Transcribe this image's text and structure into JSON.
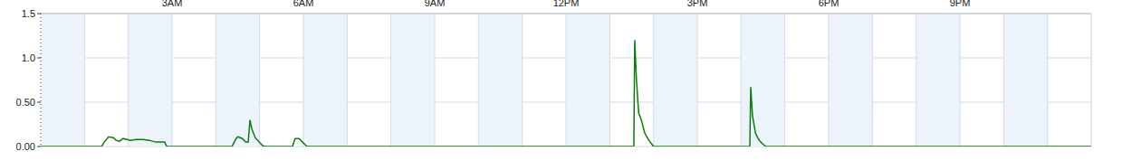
{
  "chart_data": {
    "type": "line",
    "color": "#0a7d0a",
    "grid": true,
    "x": [
      0,
      1.39,
      1.45,
      1.55,
      1.66,
      1.72,
      1.8,
      1.88,
      1.97,
      2.05,
      2.17,
      2.34,
      2.48,
      2.63,
      2.83,
      2.88,
      4.37,
      4.45,
      4.5,
      4.61,
      4.68,
      4.74,
      4.78,
      4.82,
      4.9,
      4.99,
      5.07,
      5.11,
      5.75,
      5.81,
      5.9,
      5.98,
      6.04,
      6.08,
      13.55,
      13.57,
      13.61,
      13.66,
      13.72,
      13.8,
      13.88,
      13.97,
      14.0,
      16.2,
      16.22,
      16.26,
      16.33,
      16.41,
      16.49,
      16.57,
      24
    ],
    "values": [
      0,
      0,
      0.05,
      0.11,
      0.1,
      0.07,
      0.06,
      0.09,
      0.08,
      0.07,
      0.08,
      0.08,
      0.07,
      0.05,
      0.05,
      0,
      0,
      0.08,
      0.11,
      0.09,
      0.05,
      0.05,
      0.3,
      0.2,
      0.1,
      0.05,
      0.01,
      0,
      0,
      0.09,
      0.09,
      0.05,
      0.02,
      0,
      0,
      1.2,
      0.75,
      0.38,
      0.3,
      0.15,
      0.08,
      0.02,
      0,
      0,
      0.67,
      0.35,
      0.15,
      0.07,
      0.03,
      0,
      0
    ],
    "xlim": [
      0,
      24
    ],
    "xticks": [
      {
        "value": 3,
        "label": "3AM"
      },
      {
        "value": 6,
        "label": "6AM"
      },
      {
        "value": 9,
        "label": "9AM"
      },
      {
        "value": 12,
        "label": "12PM"
      },
      {
        "value": 15,
        "label": "3PM"
      },
      {
        "value": 18,
        "label": "6PM"
      },
      {
        "value": 21,
        "label": "9PM"
      }
    ],
    "ylim": [
      0,
      1.5
    ],
    "yticks": [
      {
        "value": 0,
        "label": "0.00"
      },
      {
        "value": 0.5,
        "label": "0.50"
      },
      {
        "value": 1,
        "label": "1.0"
      },
      1.5
    ]
  }
}
